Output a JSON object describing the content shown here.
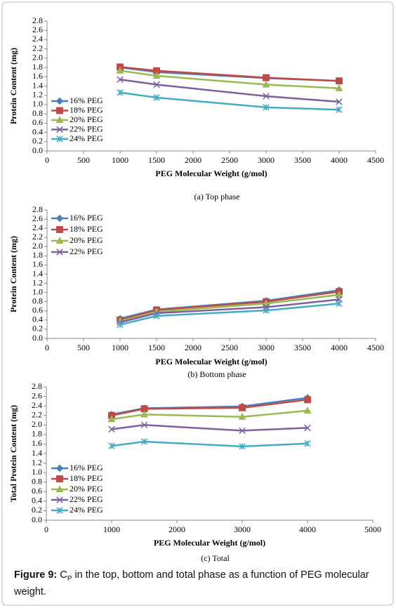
{
  "chart_data": [
    {
      "type": "line",
      "caption": "(a) Top phase",
      "xlabel": "PEG Molecular Weight (g/mol)",
      "ylabel": "Protein Content (mg)",
      "xlim": [
        0,
        4500
      ],
      "xticks": [
        0,
        500,
        1000,
        1500,
        2000,
        2500,
        3000,
        3500,
        4000,
        4500
      ],
      "ylim": [
        0,
        2.8
      ],
      "yticks": [
        {
          "value": 0,
          "label": "0.0"
        },
        0.2,
        0.4,
        0.6,
        0.8,
        {
          "value": 1,
          "label": "1.0"
        },
        1.2,
        1.4,
        1.6,
        1.8,
        {
          "value": 2,
          "label": "2.0"
        },
        2.2,
        2.4,
        2.6,
        2.8
      ],
      "x": [
        1000,
        1500,
        3000,
        4000
      ],
      "series": [
        {
          "name": "16% PEG",
          "color": "#4a7ebb",
          "marker": "diamond",
          "values": [
            1.8,
            1.7,
            1.57,
            1.51
          ]
        },
        {
          "name": "18% PEG",
          "color": "#be4b48",
          "marker": "square",
          "values": [
            1.81,
            1.73,
            1.58,
            1.51
          ]
        },
        {
          "name": "20% PEG",
          "color": "#98b954",
          "marker": "triangle",
          "values": [
            1.73,
            1.62,
            1.43,
            1.35
          ]
        },
        {
          "name": "22% PEG",
          "color": "#7d60a0",
          "marker": "x",
          "values": [
            1.54,
            1.43,
            1.18,
            1.06
          ]
        },
        {
          "name": "24% PEG",
          "color": "#46aac5",
          "marker": "star",
          "values": [
            1.26,
            1.15,
            0.94,
            0.89
          ]
        }
      ]
    },
    {
      "type": "line",
      "caption": "(b) Bottom phase",
      "xlabel": "PEG Molecular Weight (g/mol)",
      "ylabel": "Protein Content (mg)",
      "xlim": [
        0,
        4500
      ],
      "xticks": [
        0,
        500,
        1000,
        1500,
        2000,
        2500,
        3000,
        3500,
        4000,
        4500
      ],
      "ylim": [
        0,
        2.8
      ],
      "yticks": [
        {
          "value": 0,
          "label": "0.0"
        },
        0.2,
        0.4,
        0.6,
        0.8,
        {
          "value": 1,
          "label": "1.0"
        },
        1.2,
        1.4,
        1.6,
        1.8,
        {
          "value": 2,
          "label": "2.0"
        },
        2.2,
        2.4,
        2.6,
        2.8
      ],
      "x": [
        1000,
        1500,
        3000,
        4000
      ],
      "series": [
        {
          "name": "16% PEG",
          "color": "#4a7ebb",
          "marker": "diamond",
          "values": [
            0.43,
            0.63,
            0.82,
            1.05
          ]
        },
        {
          "name": "18% PEG",
          "color": "#be4b48",
          "marker": "square",
          "values": [
            0.4,
            0.62,
            0.8,
            1.02
          ]
        },
        {
          "name": "20% PEG",
          "color": "#98b954",
          "marker": "triangle",
          "values": [
            0.38,
            0.58,
            0.76,
            0.95
          ]
        },
        {
          "name": "22% PEG",
          "color": "#7d60a0",
          "marker": "x",
          "values": [
            0.35,
            0.55,
            0.68,
            0.85
          ]
        },
        {
          "color": "#46aac5",
          "marker": "star",
          "values": [
            0.3,
            0.49,
            0.61,
            0.76
          ]
        }
      ]
    },
    {
      "type": "line",
      "caption": "(c) Total",
      "xlabel": "PEG Molecular Weight (g/mol)",
      "ylabel": "Total Protein Content (mg)",
      "xlim": [
        0,
        5000
      ],
      "xticks": [
        0,
        1000,
        2000,
        3000,
        4000,
        5000
      ],
      "ylim": [
        0,
        2.8
      ],
      "yticks": [
        {
          "value": 0,
          "label": "0.0"
        },
        0.2,
        0.4,
        0.6,
        0.8,
        {
          "value": 1,
          "label": "1.0"
        },
        1.2,
        1.4,
        1.6,
        1.8,
        {
          "value": 2,
          "label": "2.0"
        },
        2.2,
        2.4,
        2.6,
        2.8
      ],
      "x": [
        1000,
        1500,
        3000,
        4000
      ],
      "series": [
        {
          "name": "16% PEG",
          "color": "#4a7ebb",
          "marker": "diamond",
          "values": [
            2.22,
            2.35,
            2.39,
            2.57
          ]
        },
        {
          "name": "18% PEG",
          "color": "#be4b48",
          "marker": "square",
          "values": [
            2.2,
            2.34,
            2.36,
            2.53
          ]
        },
        {
          "name": "20% PEG",
          "color": "#98b954",
          "marker": "triangle",
          "values": [
            2.12,
            2.22,
            2.17,
            2.3
          ]
        },
        {
          "name": "22% PEG",
          "color": "#7d60a0",
          "marker": "x",
          "values": [
            1.91,
            2.0,
            1.88,
            1.94
          ]
        },
        {
          "name": "24% PEG",
          "color": "#46aac5",
          "marker": "star",
          "values": [
            1.56,
            1.65,
            1.55,
            1.61
          ]
        }
      ]
    }
  ],
  "figure_caption": {
    "label": "Figure 9:",
    "symbol": "C",
    "subscript": "P",
    "text": "in the top, bottom and total phase as a function of PEG molecular weight."
  }
}
